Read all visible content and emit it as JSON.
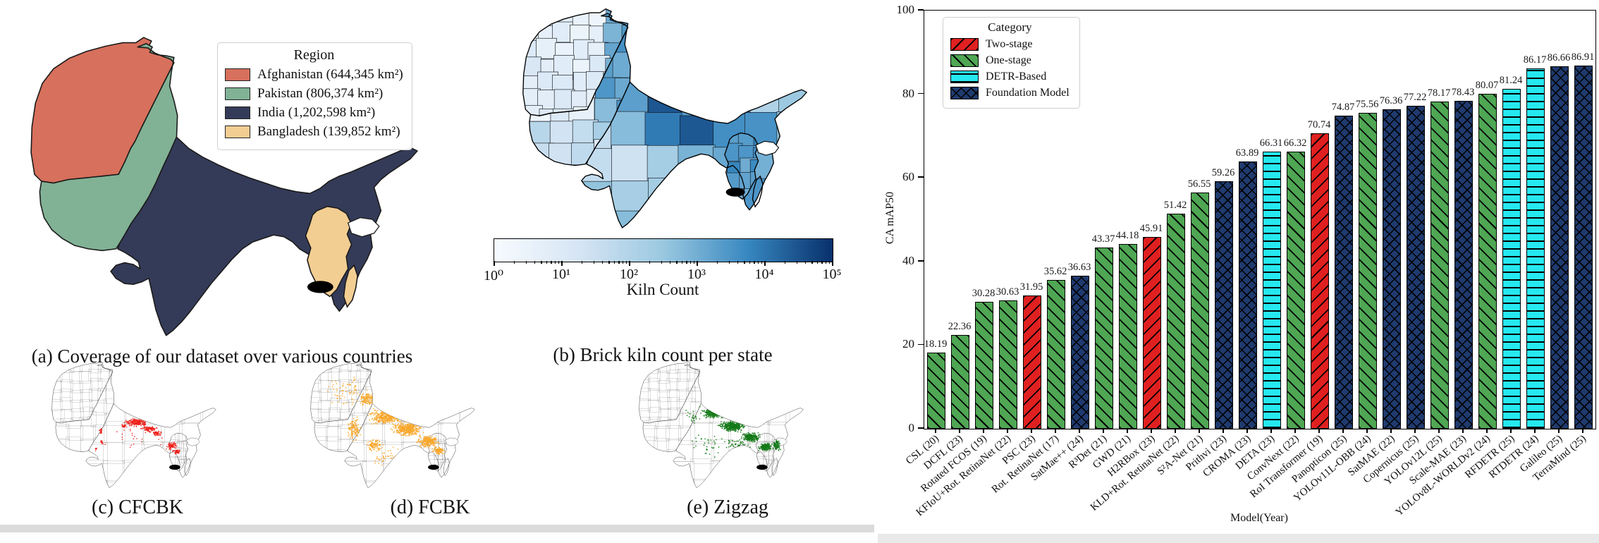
{
  "figure": {
    "captions": {
      "a": "(a) Coverage of our dataset over various countries",
      "b": "(b) Brick kiln count per state",
      "c": "(c) CFCBK",
      "d": "(d) FCBK",
      "e": "(e) Zigzag"
    },
    "map_legend": {
      "title": "Region",
      "items": [
        {
          "label": "Afghanistan (644,345 km²)",
          "color": "#d7705c"
        },
        {
          "label": "Pakistan (806,374 km²)",
          "color": "#81b295"
        },
        {
          "label": "India (1,202,598 km²)",
          "color": "#343b58"
        },
        {
          "label": "Bangladesh (139,852 km²)",
          "color": "#f3ce93"
        }
      ]
    },
    "colorbar": {
      "label": "Kiln Count",
      "scale": "log",
      "tick_labels": [
        "10⁰",
        "10¹",
        "10²",
        "10³",
        "10⁴",
        "10⁵"
      ],
      "colormap": [
        "#f7fbff",
        "#d6e5f4",
        "#9ac8e0",
        "#3787c0",
        "#08306b"
      ]
    },
    "scatter_maps": [
      {
        "id": "c",
        "kiln_type": "CFCBK",
        "dot_color": "#ee1c16"
      },
      {
        "id": "d",
        "kiln_type": "FCBK",
        "dot_color": "#f7a72b"
      },
      {
        "id": "e",
        "kiln_type": "Zigzag",
        "dot_color": "#147a18"
      }
    ]
  },
  "chart_data": {
    "type": "bar",
    "title": "",
    "xlabel": "Model(Year)",
    "ylabel": "CA mAP50",
    "ylim": [
      0,
      100
    ],
    "yticks": [
      0,
      20,
      40,
      60,
      80,
      100
    ],
    "grid": false,
    "legend": {
      "title": "Category",
      "position": "upper left",
      "entries": [
        {
          "name": "Two-stage",
          "color": "#e02020",
          "hatch": "/"
        },
        {
          "name": "One-stage",
          "color": "#4fa653",
          "hatch": "\\"
        },
        {
          "name": "DETR-Based",
          "color": "#26e8f0",
          "hatch": "-"
        },
        {
          "name": "Foundation Model",
          "color": "#1f3a6e",
          "hatch": "x"
        }
      ]
    },
    "categories": [
      "CSL (20)",
      "DCFL (23)",
      "Rotated FCOS (19)",
      "KFIoU+Rot. RetinaNet (22)",
      "PSC (23)",
      "Rot. RetinaNet (17)",
      "SatMae++ (24)",
      "R³Det (21)",
      "GWD (21)",
      "H2RBox (23)",
      "KLD+Rot. RetinaNet (22)",
      "S²A-Net (21)",
      "Prithvi (23)",
      "CROMA (23)",
      "DETA (23)",
      "ConvNext (22)",
      "RoI Transformer (19)",
      "Panopticon (25)",
      "YOLOv11L-OBB (24)",
      "SatMAE (22)",
      "Copernicus (25)",
      "YOLOv12L (25)",
      "Scale-MAE (23)",
      "YOLOv8L-WORLDv2 (24)",
      "RFDETR (25)",
      "RTDETR (24)",
      "Galileo (25)",
      "TerraMind (25)"
    ],
    "values": [
      18.19,
      22.36,
      30.28,
      30.63,
      31.95,
      35.62,
      36.63,
      43.37,
      44.18,
      45.91,
      51.42,
      56.55,
      59.26,
      63.89,
      66.31,
      66.32,
      70.74,
      74.87,
      75.56,
      76.36,
      77.22,
      78.17,
      78.43,
      80.07,
      81.24,
      86.17,
      86.66,
      86.91
    ],
    "series_category": [
      "One-stage",
      "One-stage",
      "One-stage",
      "One-stage",
      "Two-stage",
      "One-stage",
      "Foundation Model",
      "One-stage",
      "One-stage",
      "Two-stage",
      "One-stage",
      "One-stage",
      "Foundation Model",
      "Foundation Model",
      "DETR-Based",
      "One-stage",
      "Two-stage",
      "Foundation Model",
      "One-stage",
      "Foundation Model",
      "Foundation Model",
      "One-stage",
      "Foundation Model",
      "One-stage",
      "DETR-Based",
      "DETR-Based",
      "Foundation Model",
      "Foundation Model"
    ]
  }
}
